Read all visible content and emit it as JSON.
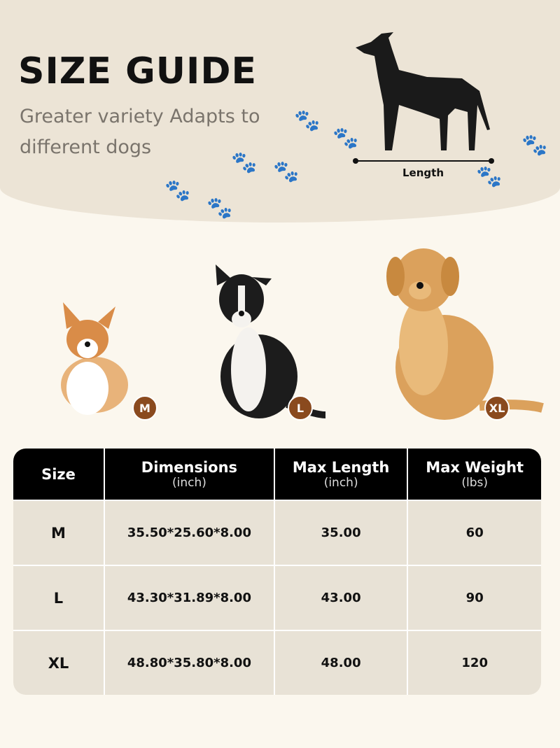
{
  "header": {
    "title": "SIZE GUIDE",
    "subtitle": "Greater variety Adapts to different dogs",
    "length_label": "Length"
  },
  "dogs": [
    {
      "size": "M"
    },
    {
      "size": "L"
    },
    {
      "size": "XL"
    }
  ],
  "colors": {
    "badge": "#8a4a1e",
    "header_bg": "#000000",
    "row_bg": "#e8e2d6"
  },
  "table": {
    "headers": [
      {
        "label": "Size",
        "unit": ""
      },
      {
        "label": "Dimensions",
        "unit": "(inch)"
      },
      {
        "label": "Max Length",
        "unit": "(inch)"
      },
      {
        "label": "Max Weight",
        "unit": "(lbs)"
      }
    ],
    "rows": [
      {
        "size": "M",
        "dimensions": "35.50*25.60*8.00",
        "max_length": "35.00",
        "max_weight": "60"
      },
      {
        "size": "L",
        "dimensions": "43.30*31.89*8.00",
        "max_length": "43.00",
        "max_weight": "90"
      },
      {
        "size": "XL",
        "dimensions": "48.80*35.80*8.00",
        "max_length": "48.00",
        "max_weight": "120"
      }
    ]
  }
}
